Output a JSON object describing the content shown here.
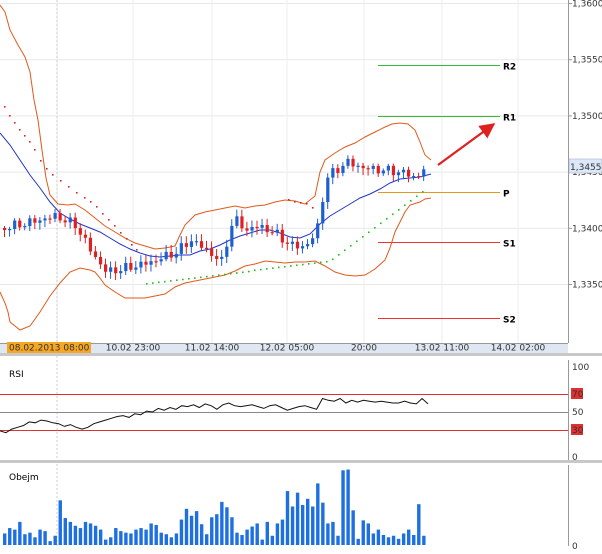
{
  "chart_data": [
    {
      "type": "candlestick",
      "panel": "price",
      "y_axis_labels": [
        "1,3600",
        "1,3550",
        "1,3500",
        "1,3450",
        "1,3400",
        "1,3350"
      ],
      "ylim": [
        1.3315,
        1.3605
      ],
      "current_price_label": "1,34558",
      "x_axis_labels": [
        "10.02 23:00",
        "11.02 14:00",
        "12.02 05:00",
        "20:00",
        "13.02 11:00",
        "14.02 02:00"
      ],
      "highlighted_time_label": "08.02.2013 08:00",
      "pivot_levels": [
        {
          "name": "R2",
          "value": 1.3545,
          "color": "#33bb33"
        },
        {
          "name": "R1",
          "value": 1.35,
          "color": "#33bb33"
        },
        {
          "name": "P",
          "value": 1.3432,
          "color": "#dd9922"
        },
        {
          "name": "S1",
          "value": 1.3388,
          "color": "#ee3333"
        },
        {
          "name": "S2",
          "value": 1.332,
          "color": "#ee3333"
        }
      ],
      "indicators": [
        "Bollinger Bands",
        "Moving Average",
        "Parabolic SAR"
      ],
      "colors": {
        "up": "#1e5fd0",
        "down": "#e02020",
        "bands": "#e05a1a",
        "ma": "#2233cc",
        "sar_up": "#22bb22",
        "sar_down": "#dd2222",
        "arrow": "#e02020"
      },
      "grid": true
    },
    {
      "type": "line",
      "panel": "RSI",
      "title": "RSI",
      "y_axis_labels": [
        "100",
        "70",
        "50",
        "30",
        "0"
      ],
      "reference_lines": [
        70,
        50,
        30
      ],
      "ylim": [
        0,
        100
      ],
      "series": [
        {
          "values": [
            29,
            27,
            31,
            33,
            35,
            39,
            38,
            41,
            40,
            38,
            37,
            34,
            36,
            33,
            31,
            33,
            37,
            39,
            41,
            43,
            45,
            46,
            44,
            48,
            47,
            51,
            50,
            54,
            52,
            55,
            53,
            57,
            56,
            58,
            55,
            59,
            57,
            53,
            58,
            60,
            57,
            56,
            57,
            58,
            56,
            54,
            57,
            58,
            55,
            52,
            54,
            56,
            57,
            55,
            53,
            65,
            63,
            62,
            65,
            60,
            63,
            61,
            63,
            62,
            61,
            62,
            61,
            60,
            60,
            62,
            60,
            59,
            65,
            59
          ]
        }
      ]
    },
    {
      "type": "bar",
      "panel": "volume",
      "title": "Obejm",
      "y_axis_labels": [
        "0"
      ],
      "series": [
        {
          "values": [
            0.15,
            0.22,
            0.2,
            0.3,
            0.14,
            0.16,
            0.1,
            0.2,
            0.18,
            0.05,
            0.12,
            0.58,
            0.35,
            0.3,
            0.25,
            0.22,
            0.3,
            0.28,
            0.25,
            0.2,
            0.07,
            0.1,
            0.22,
            0.18,
            0.16,
            0.15,
            0.2,
            0.22,
            0.2,
            0.28,
            0.26,
            0.16,
            0.14,
            0.1,
            0.15,
            0.33,
            0.47,
            0.38,
            0.44,
            0.27,
            0.14,
            0.36,
            0.4,
            0.56,
            0.49,
            0.36,
            0.16,
            0.13,
            0.2,
            0.24,
            0.28,
            0.07,
            0.3,
            0.12,
            0.28,
            0.33,
            0.7,
            0.5,
            0.68,
            0.52,
            0.6,
            0.5,
            0.8,
            0.55,
            0.28,
            0.3,
            0.12,
            0.97,
            0.98,
            0.45,
            0.08,
            0.32,
            0.28,
            0.15,
            0.2,
            0.13,
            0.1,
            0.12,
            0.08,
            0.15,
            0.2,
            0.13,
            0.53,
            0.12
          ]
        }
      ]
    }
  ]
}
